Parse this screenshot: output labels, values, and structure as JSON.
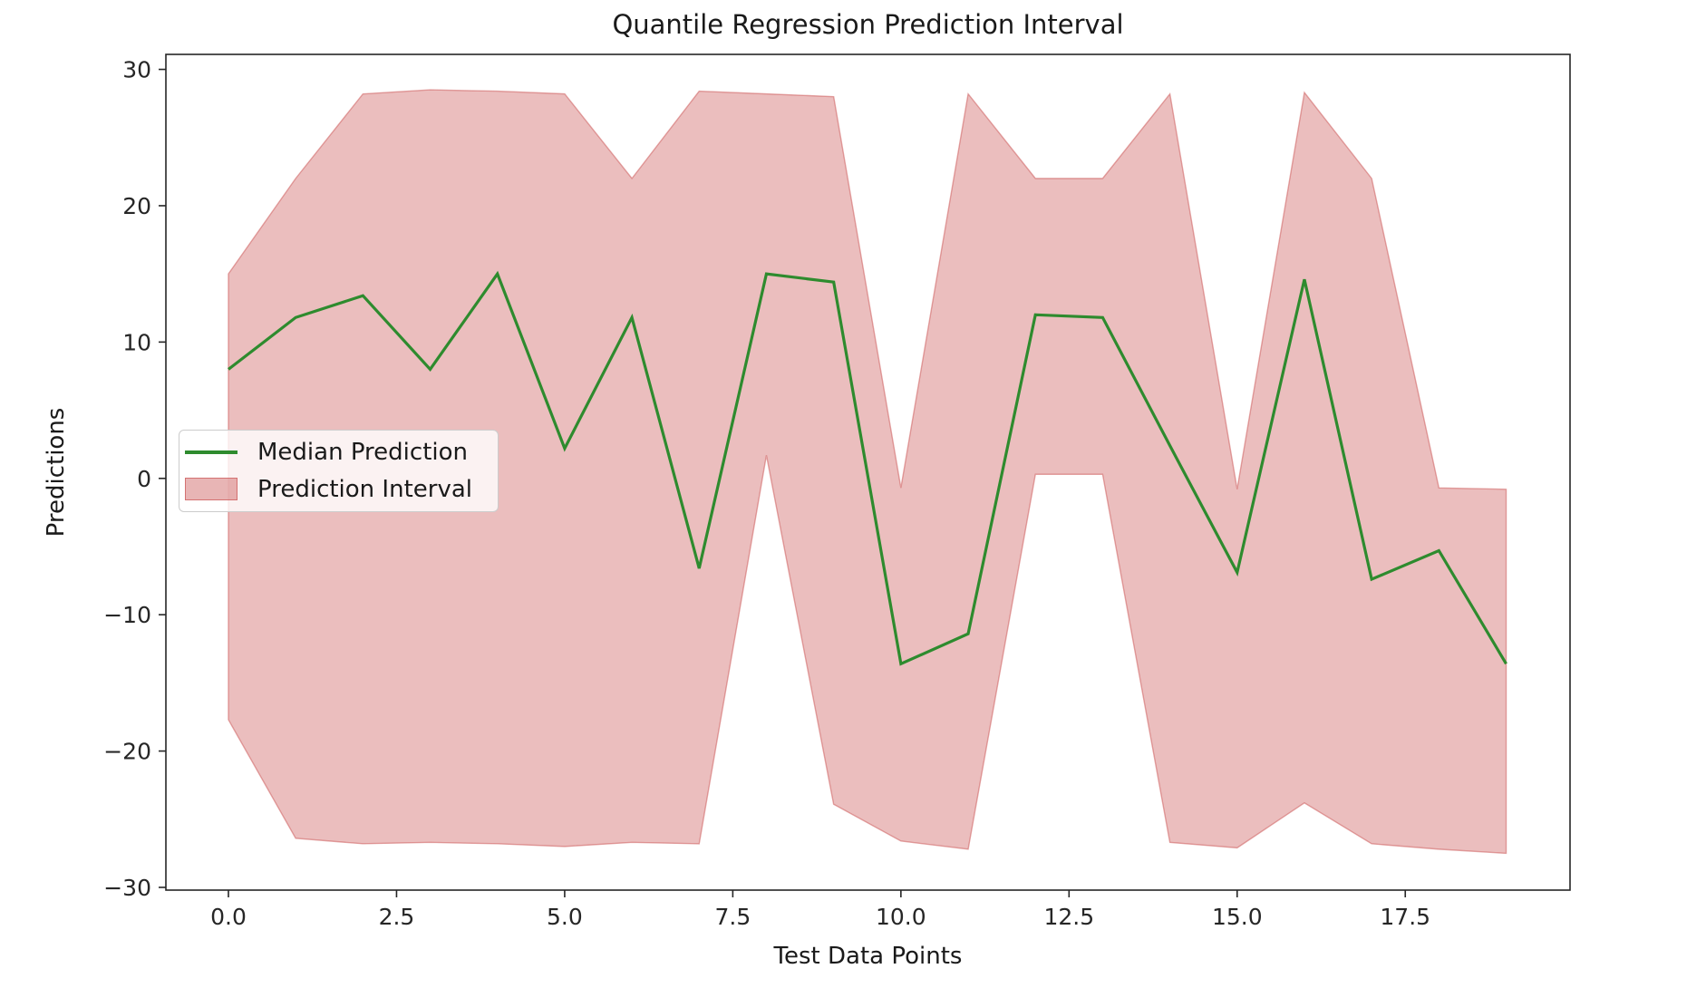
{
  "chart": {
    "title": "Quantile Regression Prediction Interval",
    "xlabel": "Test Data Points",
    "ylabel": "Predictions"
  },
  "legend": {
    "items": [
      {
        "label": "Median Prediction",
        "swatch": "line"
      },
      {
        "label": "Prediction Interval",
        "swatch": "patch"
      }
    ]
  },
  "chart_data": {
    "type": "line",
    "title": "Quantile Regression Prediction Interval",
    "xlabel": "Test Data Points",
    "ylabel": "Predictions",
    "x": [
      0,
      1,
      2,
      3,
      4,
      5,
      6,
      7,
      8,
      9,
      10,
      11,
      12,
      13,
      14,
      15,
      16,
      17,
      18,
      19
    ],
    "series": [
      {
        "name": "Median Prediction",
        "type": "line",
        "color": "#2e8b2e",
        "values": [
          8.0,
          11.8,
          13.4,
          8.0,
          15.0,
          2.2,
          11.8,
          -6.6,
          15.0,
          14.4,
          -13.6,
          -11.4,
          12.0,
          11.8,
          2.4,
          -6.9,
          14.6,
          -7.4,
          -5.3,
          -13.6
        ]
      },
      {
        "name": "Prediction Interval",
        "type": "band",
        "color": "#cd5c5c",
        "fill_opacity": 0.4,
        "upper": [
          15.0,
          22.0,
          28.2,
          28.5,
          28.4,
          28.2,
          22.0,
          28.4,
          28.2,
          28.0,
          -0.7,
          28.2,
          22.0,
          22.0,
          28.2,
          -0.8,
          28.3,
          22.0,
          -0.7,
          -0.8
        ],
        "lower": [
          -17.7,
          -26.4,
          -26.8,
          -26.7,
          -26.8,
          -27.0,
          -26.7,
          -26.8,
          1.7,
          -23.9,
          -26.6,
          -27.2,
          0.3,
          0.3,
          -26.7,
          -27.1,
          -23.8,
          -26.8,
          -27.2,
          -27.5
        ]
      }
    ],
    "x_ticks": {
      "values": [
        0,
        2.5,
        5,
        7.5,
        10,
        12.5,
        15,
        17.5
      ],
      "labels": [
        "0.0",
        "2.5",
        "5.0",
        "7.5",
        "10.0",
        "12.5",
        "15.0",
        "17.5"
      ]
    },
    "y_ticks": {
      "values": [
        30,
        20,
        10,
        0,
        -10,
        -20,
        -30
      ],
      "labels": [
        "30",
        "20",
        "10",
        "0",
        "−10",
        "−20",
        "−30"
      ]
    },
    "xlim": [
      -0.93,
      19.95
    ],
    "ylim": [
      -30.2,
      31.1
    ],
    "grid": false,
    "legend_position": "center-left",
    "colors": {
      "text": "#262626",
      "spine": "#262626"
    }
  }
}
